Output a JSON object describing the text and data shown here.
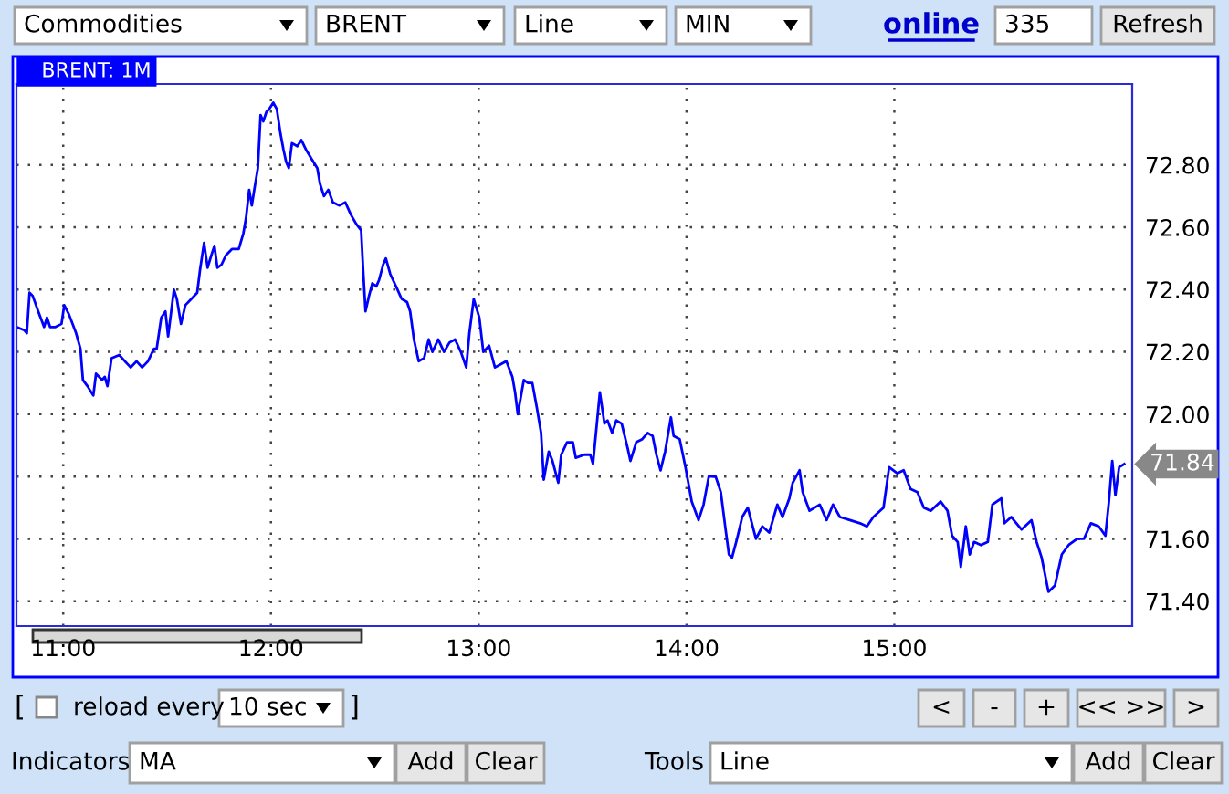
{
  "chart_data": {
    "type": "line",
    "title": "BRENT: 1M",
    "color": "#0000ff",
    "grid": true,
    "x": [
      10.775,
      10.812,
      10.825,
      10.838,
      10.853,
      10.88,
      10.908,
      10.922,
      10.937,
      10.963,
      10.992,
      11.005,
      11.028,
      11.062,
      11.083,
      11.095,
      11.117,
      11.145,
      11.158,
      11.187,
      11.2,
      11.213,
      11.233,
      11.27,
      11.297,
      11.325,
      11.353,
      11.38,
      11.408,
      11.437,
      11.45,
      11.472,
      11.492,
      11.505,
      11.533,
      11.547,
      11.567,
      11.588,
      11.617,
      11.645,
      11.658,
      11.678,
      11.695,
      11.713,
      11.728,
      11.742,
      11.762,
      11.783,
      11.812,
      11.845,
      11.867,
      11.88,
      11.895,
      11.908,
      11.922,
      11.937,
      11.95,
      11.963,
      11.978,
      11.992,
      12.011,
      12.028,
      12.046,
      12.06,
      12.073,
      12.086,
      12.101,
      12.127,
      12.146,
      12.168,
      12.195,
      12.223,
      12.236,
      12.255,
      12.276,
      12.298,
      12.33,
      12.358,
      12.385,
      12.411,
      12.434,
      12.444,
      12.455,
      12.472,
      12.488,
      12.507,
      12.52,
      12.54,
      12.553,
      12.574,
      12.602,
      12.629,
      12.655,
      12.67,
      12.688,
      12.711,
      12.737,
      12.759,
      12.777,
      12.805,
      12.833,
      12.859,
      12.886,
      12.914,
      12.94,
      12.955,
      12.976,
      13.003,
      13.022,
      13.05,
      13.078,
      13.105,
      13.133,
      13.162,
      13.175,
      13.188,
      13.217,
      13.237,
      13.258,
      13.28,
      13.3,
      13.313,
      13.337,
      13.355,
      13.383,
      13.397,
      13.425,
      13.453,
      13.467,
      13.508,
      13.537,
      13.55,
      13.57,
      13.583,
      13.605,
      13.62,
      13.642,
      13.662,
      13.688,
      13.717,
      13.73,
      13.758,
      13.787,
      13.813,
      13.837,
      13.855,
      13.875,
      13.897,
      13.925,
      13.938,
      13.967,
      13.995,
      14.025,
      14.058,
      14.082,
      14.107,
      14.14,
      14.165,
      14.188,
      14.204,
      14.219,
      14.243,
      14.268,
      14.295,
      14.334,
      14.365,
      14.398,
      14.437,
      14.462,
      14.495,
      14.511,
      14.544,
      14.559,
      14.592,
      14.641,
      14.674,
      14.705,
      14.738,
      14.786,
      14.835,
      14.868,
      14.899,
      14.948,
      14.975,
      15.014,
      15.045,
      15.078,
      15.111,
      15.142,
      15.175,
      15.223,
      15.256,
      15.278,
      15.305,
      15.32,
      15.344,
      15.363,
      15.384,
      15.417,
      15.45,
      15.472,
      15.515,
      15.53,
      15.563,
      15.612,
      15.66,
      15.685,
      15.709,
      15.742,
      15.773,
      15.806,
      15.839,
      15.88,
      15.913,
      15.946,
      15.984,
      16.016,
      16.033,
      16.049,
      16.064,
      16.082,
      16.107
    ],
    "values": [
      72.28,
      72.27,
      72.26,
      72.39,
      72.38,
      72.33,
      72.28,
      72.31,
      72.28,
      72.28,
      72.29,
      72.35,
      72.32,
      72.26,
      72.21,
      72.11,
      72.09,
      72.06,
      72.13,
      72.11,
      72.12,
      72.09,
      72.18,
      72.19,
      72.17,
      72.15,
      72.17,
      72.15,
      72.17,
      72.21,
      72.21,
      72.31,
      72.33,
      72.25,
      72.4,
      72.37,
      72.29,
      72.35,
      72.37,
      72.39,
      72.46,
      72.55,
      72.47,
      72.51,
      72.54,
      72.47,
      72.48,
      72.51,
      72.53,
      72.53,
      72.58,
      72.63,
      72.72,
      72.67,
      72.73,
      72.79,
      72.96,
      72.94,
      72.97,
      72.98,
      73.0,
      72.98,
      72.9,
      72.85,
      72.81,
      72.79,
      72.87,
      72.86,
      72.88,
      72.85,
      72.82,
      72.79,
      72.74,
      72.7,
      72.72,
      72.68,
      72.67,
      72.68,
      72.64,
      72.61,
      72.59,
      72.46,
      72.33,
      72.38,
      72.42,
      72.41,
      72.43,
      72.48,
      72.5,
      72.45,
      72.41,
      72.37,
      72.36,
      72.33,
      72.24,
      72.17,
      72.18,
      72.24,
      72.2,
      72.24,
      72.2,
      72.23,
      72.24,
      72.2,
      72.15,
      72.26,
      72.37,
      72.31,
      72.2,
      72.22,
      72.15,
      72.16,
      72.17,
      72.12,
      72.07,
      72.0,
      72.11,
      72.1,
      72.1,
      72.02,
      71.94,
      71.79,
      71.88,
      71.85,
      71.78,
      71.87,
      71.91,
      71.91,
      71.86,
      71.87,
      71.87,
      71.84,
      71.98,
      72.07,
      71.97,
      71.98,
      71.94,
      71.98,
      71.97,
      71.89,
      71.85,
      71.91,
      71.92,
      71.94,
      71.93,
      71.87,
      71.82,
      71.88,
      71.99,
      71.93,
      71.92,
      71.83,
      71.72,
      71.66,
      71.71,
      71.8,
      71.8,
      71.75,
      71.63,
      71.55,
      71.54,
      71.6,
      71.67,
      71.7,
      71.6,
      71.64,
      71.62,
      71.71,
      71.67,
      71.73,
      71.78,
      71.82,
      71.75,
      71.69,
      71.71,
      71.66,
      71.71,
      71.67,
      71.66,
      71.65,
      71.64,
      71.67,
      71.7,
      71.83,
      71.81,
      71.82,
      71.76,
      71.75,
      71.7,
      71.69,
      71.72,
      71.69,
      71.61,
      71.59,
      71.51,
      71.64,
      71.55,
      71.59,
      71.58,
      71.59,
      71.71,
      71.73,
      71.65,
      71.67,
      71.63,
      71.66,
      71.59,
      71.54,
      71.43,
      71.45,
      71.55,
      71.58,
      71.6,
      71.6,
      71.65,
      71.64,
      71.61,
      71.72,
      71.85,
      71.74,
      71.83,
      71.84
    ],
    "xlim": [
      10.775,
      16.145
    ],
    "xticks": [
      {
        "value": 11,
        "label": "11:00"
      },
      {
        "value": 12,
        "label": "12:00"
      },
      {
        "value": 13,
        "label": "13:00"
      },
      {
        "value": 14,
        "label": "14:00"
      },
      {
        "value": 15,
        "label": "15:00"
      }
    ],
    "ylim": [
      71.32,
      73.06
    ],
    "yticks": [
      {
        "value": 71.4,
        "label": "71.40"
      },
      {
        "value": 71.6,
        "label": "71.60"
      },
      {
        "value": 71.8,
        "label": null
      },
      {
        "value": 72.0,
        "label": "72.00"
      },
      {
        "value": 72.2,
        "label": "72.20"
      },
      {
        "value": 72.4,
        "label": "72.40"
      },
      {
        "value": 72.6,
        "label": "72.60"
      },
      {
        "value": 72.8,
        "label": "72.80"
      }
    ],
    "annotations": [
      {
        "text": "71.84",
        "x": 16.107,
        "y": 71.84
      },
      "Commodities",
      "BRENT",
      "Line",
      "MIN",
      "online",
      "335",
      "Refresh",
      "[",
      "reload every",
      "10 sec",
      "]",
      "<",
      "-",
      "+",
      "<< >>",
      ">",
      "Indicators",
      "MA",
      "Add",
      "Clear",
      "Tools",
      "Line",
      "Add",
      "Clear"
    ]
  }
}
